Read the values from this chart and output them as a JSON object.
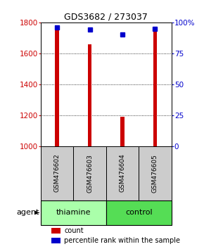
{
  "title": "GDS3682 / 273037",
  "samples": [
    "GSM476602",
    "GSM476603",
    "GSM476604",
    "GSM476605"
  ],
  "counts": [
    1780,
    1660,
    1190,
    1770
  ],
  "percentiles": [
    96,
    94,
    90,
    95
  ],
  "ylim_left": [
    1000,
    1800
  ],
  "ylim_right": [
    0,
    100
  ],
  "yticks_left": [
    1000,
    1200,
    1400,
    1600,
    1800
  ],
  "yticks_right": [
    0,
    25,
    50,
    75,
    100
  ],
  "bar_color": "#cc0000",
  "percentile_color": "#0000cc",
  "groups": [
    {
      "label": "thiamine",
      "samples": [
        0,
        1
      ],
      "color": "#aaffaa"
    },
    {
      "label": "control",
      "samples": [
        2,
        3
      ],
      "color": "#55dd55"
    }
  ],
  "sample_box_color": "#cccccc",
  "background_color": "#ffffff",
  "plot_bg_color": "#ffffff",
  "bar_bottom": 1000,
  "bar_width": 0.12
}
